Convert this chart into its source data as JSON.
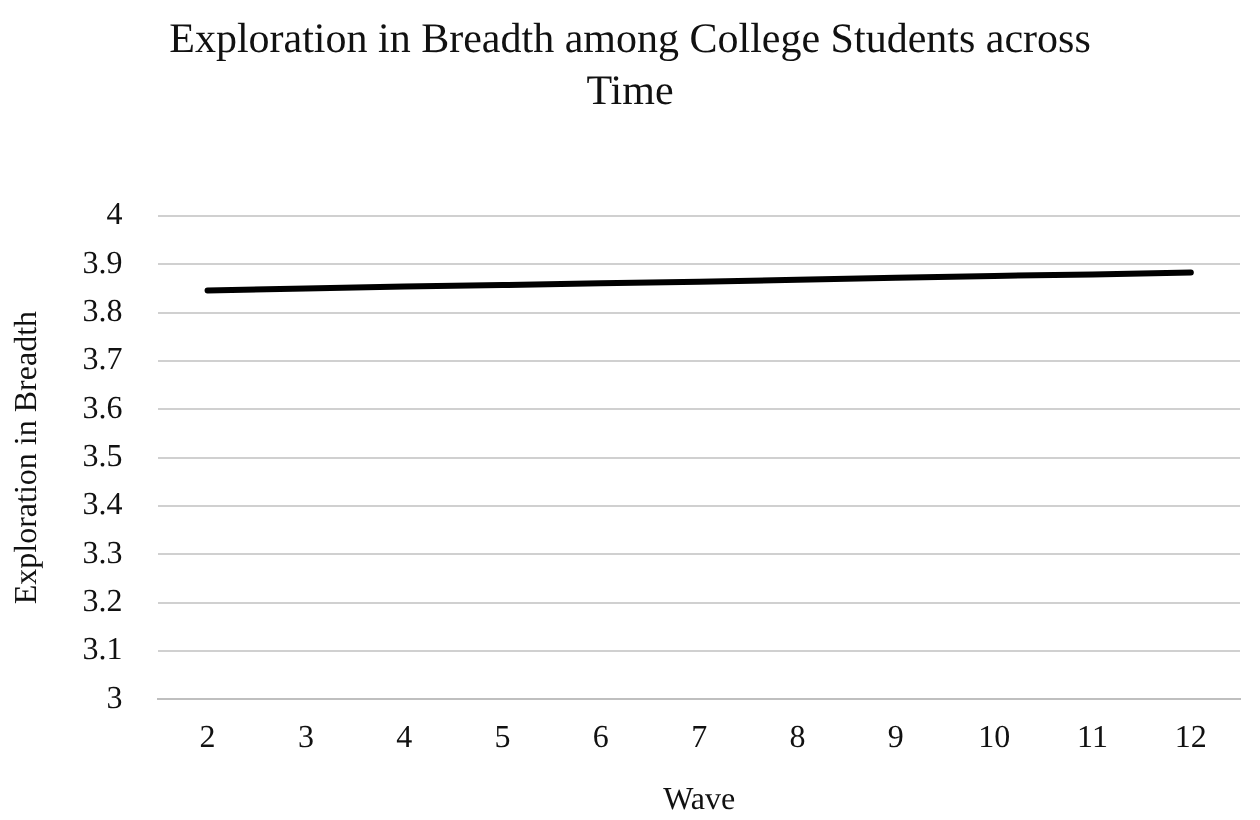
{
  "chart_data": {
    "type": "line",
    "title": "Exploration in Breadth among College Students across Time",
    "xlabel": "Wave",
    "ylabel": "Exploration in Breadth",
    "categories": [
      "2",
      "3",
      "4",
      "5",
      "6",
      "7",
      "8",
      "9",
      "10",
      "11",
      "12"
    ],
    "series": [
      {
        "color": "#000000",
        "values": [
          3.846,
          3.85,
          3.854,
          3.857,
          3.861,
          3.864,
          3.868,
          3.872,
          3.876,
          3.879,
          3.883
        ]
      }
    ],
    "ylim": [
      3,
      4
    ],
    "yticks": [
      3,
      3.1,
      3.2,
      3.3,
      3.4,
      3.5,
      3.6,
      3.7,
      3.8,
      3.9,
      4
    ],
    "grid": "y",
    "legend": false,
    "marker": "none",
    "line_style": "solid"
  }
}
